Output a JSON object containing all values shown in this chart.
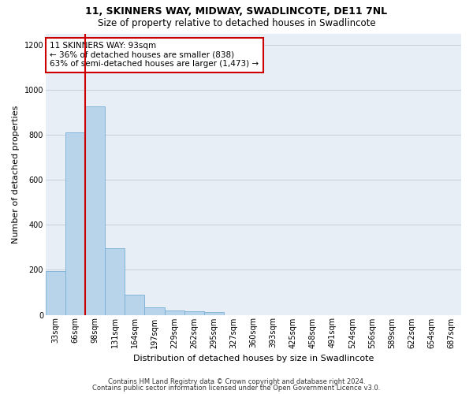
{
  "title1": "11, SKINNERS WAY, MIDWAY, SWADLINCOTE, DE11 7NL",
  "title2": "Size of property relative to detached houses in Swadlincote",
  "xlabel": "Distribution of detached houses by size in Swadlincote",
  "ylabel": "Number of detached properties",
  "footer1": "Contains HM Land Registry data © Crown copyright and database right 2024.",
  "footer2": "Contains public sector information licensed under the Open Government Licence v3.0.",
  "annotation_line1": "11 SKINNERS WAY: 93sqm",
  "annotation_line2": "← 36% of detached houses are smaller (838)",
  "annotation_line3": "63% of semi-detached houses are larger (1,473) →",
  "bar_values": [
    195,
    810,
    925,
    295,
    88,
    35,
    20,
    15,
    12,
    0,
    0,
    0,
    0,
    0,
    0,
    0,
    0,
    0,
    0,
    0,
    0
  ],
  "categories": [
    "33sqm",
    "66sqm",
    "98sqm",
    "131sqm",
    "164sqm",
    "197sqm",
    "229sqm",
    "262sqm",
    "295sqm",
    "327sqm",
    "360sqm",
    "393sqm",
    "425sqm",
    "458sqm",
    "491sqm",
    "524sqm",
    "556sqm",
    "589sqm",
    "622sqm",
    "654sqm",
    "687sqm"
  ],
  "bar_color": "#b8d4eb",
  "bar_edge_color": "#7aafd4",
  "marker_color": "#cc0000",
  "ylim": [
    0,
    1250
  ],
  "yticks": [
    0,
    200,
    400,
    600,
    800,
    1000,
    1200
  ],
  "grid_color": "#c8d0dc",
  "bg_color": "#e8eef5",
  "annotation_box_color": "#cc0000",
  "marker_bin_index": 2,
  "num_categories": 21,
  "title1_fontsize": 9,
  "title2_fontsize": 8.5,
  "ylabel_fontsize": 8,
  "xlabel_fontsize": 8,
  "tick_fontsize": 7,
  "footer_fontsize": 6
}
